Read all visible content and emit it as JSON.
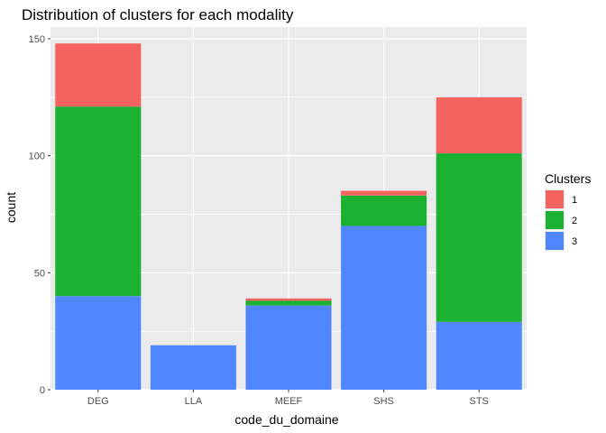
{
  "chart_data": {
    "type": "bar",
    "stacked": true,
    "title": "Distribution of clusters for each modality",
    "xlabel": "code_du_domaine",
    "ylabel": "count",
    "categories": [
      "DEG",
      "LLA",
      "MEEF",
      "SHS",
      "STS"
    ],
    "y_ticks": [
      0,
      50,
      100,
      150
    ],
    "ylim": [
      0,
      155
    ],
    "grid": true,
    "legend": {
      "title": "Clusters",
      "position": "right"
    },
    "series": [
      {
        "name": "3",
        "color": "#5087ff",
        "values": [
          40,
          19,
          36,
          70,
          29
        ]
      },
      {
        "name": "2",
        "color": "#1bb232",
        "values": [
          81,
          0,
          2,
          13,
          72
        ]
      },
      {
        "name": "1",
        "color": "#f5635f",
        "values": [
          27,
          0,
          1,
          2,
          24
        ]
      }
    ],
    "legend_order": [
      "1",
      "2",
      "3"
    ]
  }
}
